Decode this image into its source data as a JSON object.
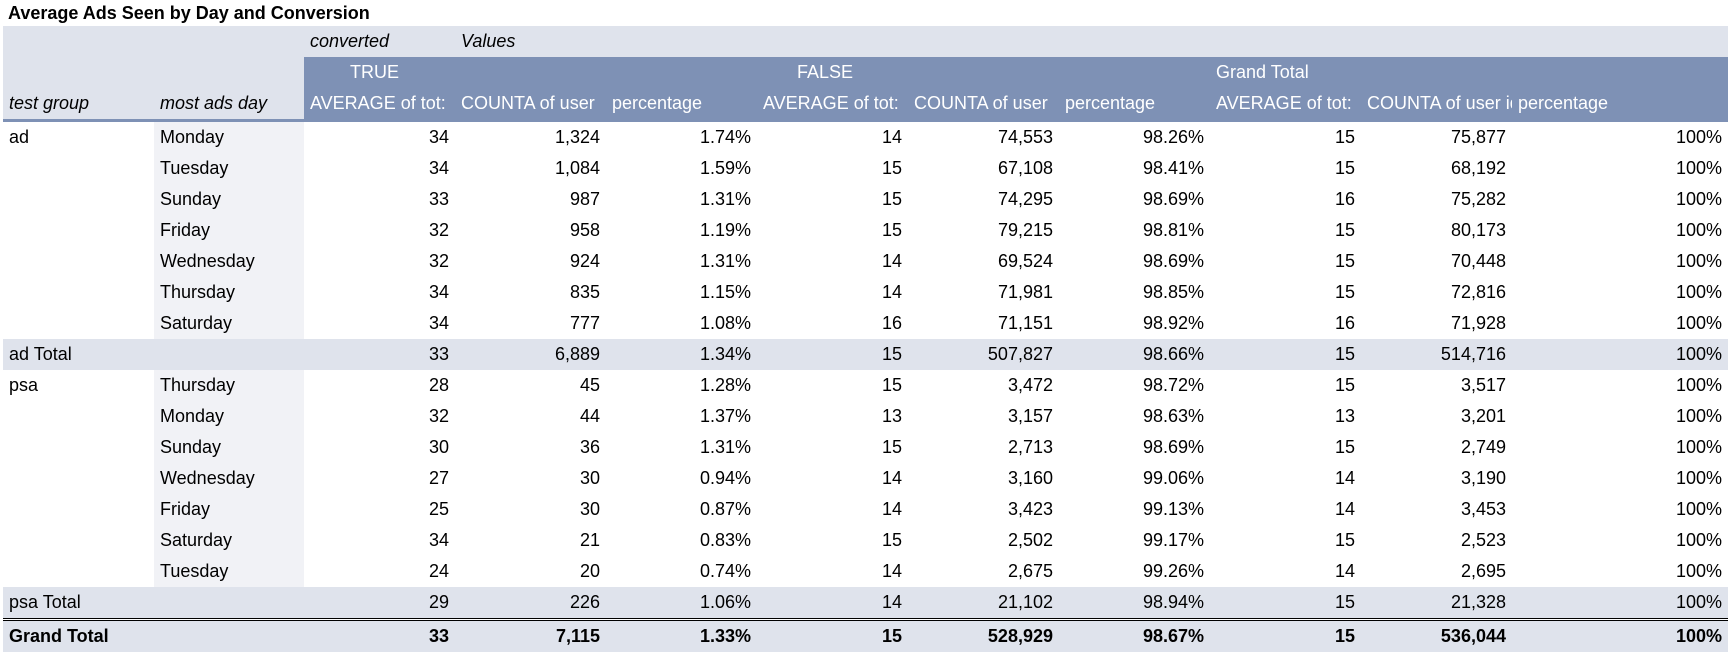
{
  "title": "Average Ads Seen by Day and Conversion",
  "header": {
    "converted_label": "converted",
    "values_label": "Values",
    "groups": [
      "TRUE",
      "FALSE",
      "Grand Total"
    ],
    "row_labels": [
      "test group",
      "most ads day"
    ],
    "measures_true": [
      "AVERAGE of tot:",
      "COUNTA of user",
      "percentage"
    ],
    "measures_false": [
      "AVERAGE of tot:",
      "COUNTA of user",
      "percentage"
    ],
    "measures_gt": [
      "AVERAGE of tot:",
      "COUNTA of user id",
      "percentage"
    ]
  },
  "groups": [
    {
      "name": "ad",
      "rows": [
        [
          "Monday",
          "34",
          "1,324",
          "1.74%",
          "14",
          "74,553",
          "98.26%",
          "15",
          "75,877",
          "100%"
        ],
        [
          "Tuesday",
          "34",
          "1,084",
          "1.59%",
          "15",
          "67,108",
          "98.41%",
          "15",
          "68,192",
          "100%"
        ],
        [
          "Sunday",
          "33",
          "987",
          "1.31%",
          "15",
          "74,295",
          "98.69%",
          "16",
          "75,282",
          "100%"
        ],
        [
          "Friday",
          "32",
          "958",
          "1.19%",
          "15",
          "79,215",
          "98.81%",
          "15",
          "80,173",
          "100%"
        ],
        [
          "Wednesday",
          "32",
          "924",
          "1.31%",
          "14",
          "69,524",
          "98.69%",
          "15",
          "70,448",
          "100%"
        ],
        [
          "Thursday",
          "34",
          "835",
          "1.15%",
          "14",
          "71,981",
          "98.85%",
          "15",
          "72,816",
          "100%"
        ],
        [
          "Saturday",
          "34",
          "777",
          "1.08%",
          "16",
          "71,151",
          "98.92%",
          "16",
          "71,928",
          "100%"
        ]
      ],
      "total_label": "ad Total",
      "total": [
        "33",
        "6,889",
        "1.34%",
        "15",
        "507,827",
        "98.66%",
        "15",
        "514,716",
        "100%"
      ]
    },
    {
      "name": "psa",
      "rows": [
        [
          "Thursday",
          "28",
          "45",
          "1.28%",
          "15",
          "3,472",
          "98.72%",
          "15",
          "3,517",
          "100%"
        ],
        [
          "Monday",
          "32",
          "44",
          "1.37%",
          "13",
          "3,157",
          "98.63%",
          "13",
          "3,201",
          "100%"
        ],
        [
          "Sunday",
          "30",
          "36",
          "1.31%",
          "15",
          "2,713",
          "98.69%",
          "15",
          "2,749",
          "100%"
        ],
        [
          "Wednesday",
          "27",
          "30",
          "0.94%",
          "14",
          "3,160",
          "99.06%",
          "14",
          "3,190",
          "100%"
        ],
        [
          "Friday",
          "25",
          "30",
          "0.87%",
          "14",
          "3,423",
          "99.13%",
          "14",
          "3,453",
          "100%"
        ],
        [
          "Saturday",
          "34",
          "21",
          "0.83%",
          "15",
          "2,502",
          "99.17%",
          "15",
          "2,523",
          "100%"
        ],
        [
          "Tuesday",
          "24",
          "20",
          "0.74%",
          "14",
          "2,675",
          "99.26%",
          "14",
          "2,695",
          "100%"
        ]
      ],
      "total_label": "psa Total",
      "total": [
        "29",
        "226",
        "1.06%",
        "14",
        "21,102",
        "98.94%",
        "15",
        "21,328",
        "100%"
      ]
    }
  ],
  "grand_total": {
    "label": "Grand Total",
    "values": [
      "33",
      "7,115",
      "1.33%",
      "15",
      "528,929",
      "98.67%",
      "15",
      "536,044",
      "100%"
    ]
  }
}
